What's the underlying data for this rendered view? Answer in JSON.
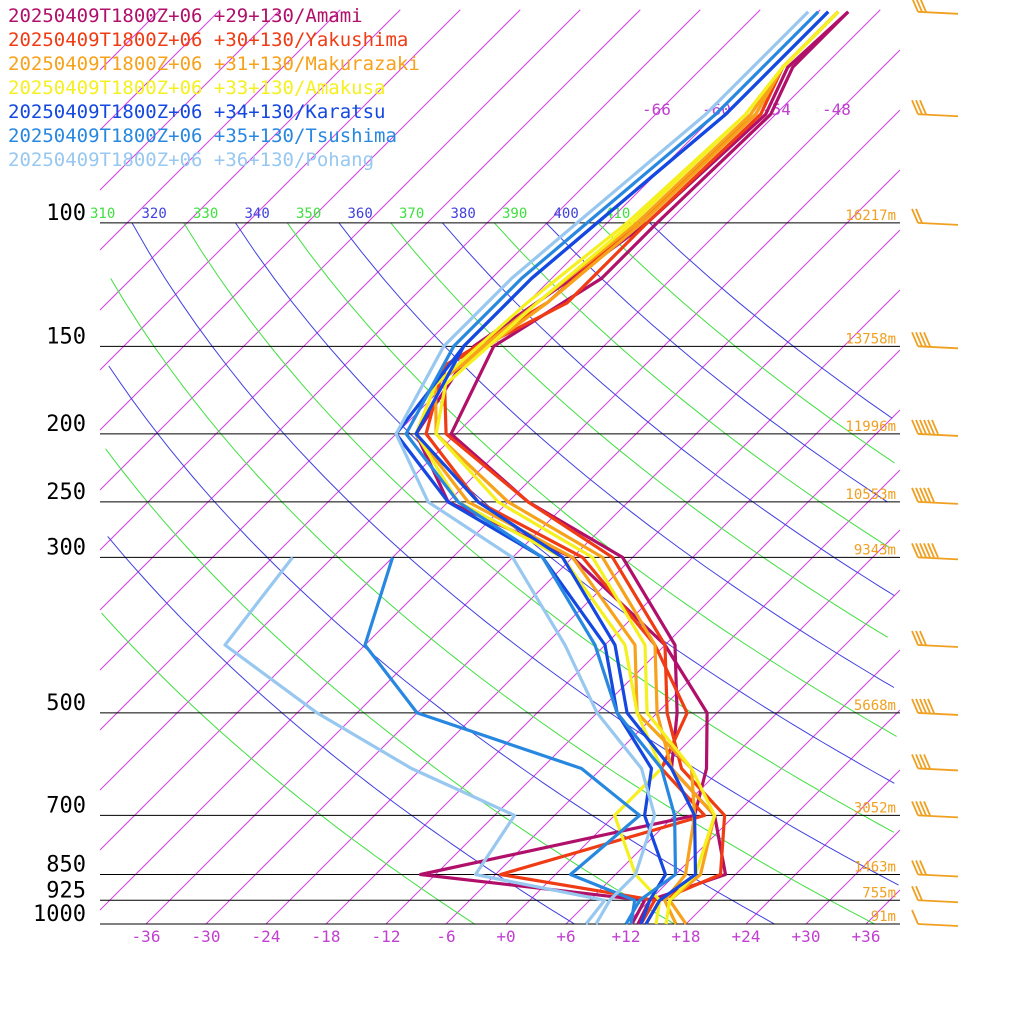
{
  "legend": [
    {
      "label": "20250409T1800Z+06 +29+130/Amami",
      "color": "#b0106a"
    },
    {
      "label": "20250409T1800Z+06 +30+130/Yakushima",
      "color": "#f03c14"
    },
    {
      "label": "20250409T1800Z+06 +31+130/Makurazaki",
      "color": "#f7a21b"
    },
    {
      "label": "20250409T1800Z+06 +33+130/Amakusa",
      "color": "#f5f020"
    },
    {
      "label": "20250409T1800Z+06 +34+130/Karatsu",
      "color": "#1448e0"
    },
    {
      "label": "20250409T1800Z+06 +35+130/Tsushima",
      "color": "#2888e0"
    },
    {
      "label": "20250409T1800Z+06 +36+130/Pohang",
      "color": "#98c8f0"
    }
  ],
  "chart_data": {
    "type": "line",
    "subtype": "skew-T log-p diagram",
    "y_axis": {
      "label": "",
      "scale": "log",
      "range": [
        1000,
        100
      ],
      "pressure_ticks": [
        "100",
        "150",
        "200",
        "250",
        "300",
        "500",
        "700",
        "850",
        "925",
        "1000"
      ]
    },
    "x_axis": {
      "tick_labels": [
        "-36",
        "-30",
        "-24",
        "-18",
        "-12",
        "-6",
        "+0",
        "+6",
        "+12",
        "+18",
        "+24",
        "+30",
        "+36"
      ]
    },
    "upper_temperature_labels": [
      "-66",
      "-60",
      "-54",
      "-48"
    ],
    "theta_labels": [
      {
        "text": "310",
        "color": "#40e040"
      },
      {
        "text": "320",
        "color": "#4040e0"
      },
      {
        "text": "330",
        "color": "#40e040"
      },
      {
        "text": "340",
        "color": "#4040e0"
      },
      {
        "text": "350",
        "color": "#40e040"
      },
      {
        "text": "360",
        "color": "#4040e0"
      },
      {
        "text": "370",
        "color": "#40e040"
      },
      {
        "text": "380",
        "color": "#4040e0"
      },
      {
        "text": "390",
        "color": "#40e040"
      },
      {
        "text": "400",
        "color": "#4040e0"
      },
      {
        "text": "410",
        "color": "#40e040"
      }
    ],
    "height_labels": [
      {
        "pressure": 100,
        "text": "16217m"
      },
      {
        "pressure": 150,
        "text": "13758m"
      },
      {
        "pressure": 200,
        "text": "11996m"
      },
      {
        "pressure": 250,
        "text": "10553m"
      },
      {
        "pressure": 300,
        "text": "9343m"
      },
      {
        "pressure": 500,
        "text": "5668m"
      },
      {
        "pressure": 700,
        "text": "3052m"
      },
      {
        "pressure": 850,
        "text": "1463m"
      },
      {
        "pressure": 925,
        "text": "755m"
      },
      {
        "pressure": 1000,
        "text": "91m"
      }
    ],
    "grid": {
      "isobars": true,
      "isotherms": true,
      "potential_temperature": true
    },
    "legend_position": "top-left",
    "series": [
      {
        "name": "20250409T1800Z+06 +29+130/Amami",
        "color": "#b0106a",
        "pressure": [
          1000,
          925,
          850,
          700,
          600,
          500,
          400,
          300,
          250,
          200,
          150,
          120,
          100,
          70,
          60,
          50
        ],
        "temperature": [
          13.2,
          12,
          17,
          10,
          1,
          -4,
          -11,
          -25,
          -40,
          -54.5,
          -59,
          -55,
          -55,
          -54.5,
          -57,
          -57
        ],
        "dewpoint": [
          12.6,
          11.5,
          -13.5,
          8,
          4.5,
          -1,
          -12,
          -30,
          -48,
          -58,
          -61,
          -58,
          -56,
          -55,
          -57.5,
          -57
        ]
      },
      {
        "name": "20250409T1800Z+06 +30+130/Yakushima",
        "color": "#f03c14",
        "pressure": [
          1000,
          925,
          850,
          700,
          600,
          500,
          400,
          300,
          250,
          200,
          160,
          130,
          100,
          70,
          60,
          50
        ],
        "temperature": [
          14,
          13,
          16.5,
          11,
          2,
          -5,
          -12,
          -26,
          -40,
          -55,
          -62,
          -56,
          -56,
          -55.5,
          -58,
          -58
        ],
        "dewpoint": [
          13.5,
          12.5,
          -5.5,
          9,
          0,
          -3,
          -13,
          -29,
          -45,
          -57,
          -62,
          -58,
          -57,
          -56,
          -58,
          -58
        ]
      },
      {
        "name": "20250409T1800Z+06 +31+130/Makurazaki",
        "color": "#f7a21b",
        "pressure": [
          1000,
          925,
          850,
          700,
          600,
          500,
          400,
          300,
          250,
          200,
          170,
          130,
          100,
          70,
          60,
          50
        ],
        "temperature": [
          18,
          14,
          14.5,
          10,
          1,
          -6,
          -13,
          -27,
          -42,
          -56,
          -61,
          -58,
          -56.5,
          -56,
          -58,
          -58
        ],
        "dewpoint": [
          17,
          13.5,
          13,
          8,
          3,
          -8,
          -15,
          -30,
          -46,
          -58,
          -61,
          -59,
          -57,
          -56.5,
          -58,
          -58
        ]
      },
      {
        "name": "20250409T1800Z+06 +33+130/Amakusa",
        "color": "#f5f020",
        "pressure": [
          1000,
          925,
          850,
          700,
          600,
          500,
          400,
          300,
          250,
          200,
          170,
          130,
          100,
          70,
          60,
          50
        ],
        "temperature": [
          16,
          14,
          14,
          10,
          3,
          -7,
          -14,
          -28,
          -43,
          -56,
          -60,
          -59,
          -57.5,
          -57,
          -58,
          -58
        ],
        "dewpoint": [
          15,
          13,
          8,
          0,
          0,
          -8,
          -16,
          -31,
          -47,
          -58,
          -61,
          -60,
          -58,
          -57,
          -58,
          -58
        ]
      },
      {
        "name": "20250409T1800Z+06 +34+130/Karatsu",
        "color": "#1448e0",
        "pressure": [
          1000,
          925,
          850,
          700,
          600,
          500,
          400,
          300,
          250,
          200,
          150,
          120,
          100,
          70,
          60,
          50
        ],
        "temperature": [
          14,
          13,
          14,
          8,
          1,
          -9,
          -17,
          -31,
          -45,
          -58,
          -62,
          -62,
          -61,
          -59,
          -59,
          -59
        ],
        "dewpoint": [
          13.5,
          12,
          11,
          3,
          -1,
          -10,
          -18,
          -33,
          -48,
          -60,
          -62,
          -62,
          -61,
          -59,
          -59,
          -59
        ]
      },
      {
        "name": "20250409T1800Z+06 +35+130/Tsushima",
        "color": "#2888e0",
        "pressure": [
          1000,
          925,
          850,
          700,
          600,
          500,
          400,
          300,
          250,
          200,
          150,
          120,
          100,
          70,
          60,
          50
        ],
        "temperature": [
          12,
          11,
          12,
          6,
          0,
          -10,
          -19,
          -33,
          -47,
          -59,
          -63,
          -63,
          -62,
          -60,
          -60,
          -60
        ],
        "dewpoint": [
          12.5,
          10.5,
          1.5,
          2.5,
          -8,
          -30,
          -42,
          -48
        ]
      },
      {
        "name": "20250409T1800Z+06 +36+130/Pohang",
        "color": "#98c8f0",
        "pressure": [
          1000,
          925,
          850,
          700,
          600,
          500,
          400,
          300,
          250,
          200,
          150,
          120,
          100,
          70,
          60,
          50
        ],
        "temperature": [
          9,
          8,
          8,
          4,
          -2,
          -12,
          -22,
          -36,
          -50,
          -60,
          -64,
          -64,
          -63,
          -61,
          -61,
          -61
        ],
        "dewpoint": [
          8,
          7.5,
          -8,
          -10,
          -25,
          -40,
          -56,
          -58
        ]
      }
    ],
    "wind_barbs": [
      {
        "pressure": 1000,
        "direction": 200,
        "speed": 10
      },
      {
        "pressure": 925,
        "direction": 220,
        "speed": 20
      },
      {
        "pressure": 850,
        "direction": 240,
        "speed": 25
      },
      {
        "pressure": 700,
        "direction": 250,
        "speed": 35
      },
      {
        "pressure": 600,
        "direction": 260,
        "speed": 40
      },
      {
        "pressure": 500,
        "direction": 265,
        "speed": 45
      },
      {
        "pressure": 400,
        "direction": 265,
        "speed": 30
      },
      {
        "pressure": 300,
        "direction": 265,
        "speed": 65
      },
      {
        "pressure": 250,
        "direction": 265,
        "speed": 45
      },
      {
        "pressure": 200,
        "direction": 265,
        "speed": 55
      },
      {
        "pressure": 150,
        "direction": 265,
        "speed": 40
      },
      {
        "pressure": 100,
        "direction": 255,
        "speed": 20
      },
      {
        "pressure": 70,
        "direction": 260,
        "speed": 30
      },
      {
        "pressure": 50,
        "direction": 260,
        "speed": 30
      }
    ]
  }
}
